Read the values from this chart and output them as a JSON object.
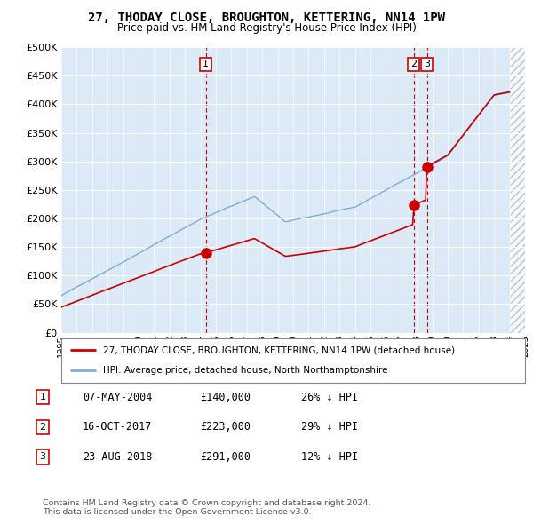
{
  "title": "27, THODAY CLOSE, BROUGHTON, KETTERING, NN14 1PW",
  "subtitle": "Price paid vs. HM Land Registry's House Price Index (HPI)",
  "ylim": [
    0,
    500000
  ],
  "yticks": [
    0,
    50000,
    100000,
    150000,
    200000,
    250000,
    300000,
    350000,
    400000,
    450000,
    500000
  ],
  "ytick_labels": [
    "£0",
    "£50K",
    "£100K",
    "£150K",
    "£200K",
    "£250K",
    "£300K",
    "£350K",
    "£400K",
    "£450K",
    "£500K"
  ],
  "xlim_start": 1995,
  "xlim_end": 2025,
  "hatch_start": 2024.0,
  "price_paid_color": "#cc0000",
  "hpi_color": "#7bafd4",
  "vertical_line_color": "#cc0000",
  "transactions": [
    {
      "date_num": 2004.35,
      "price": 140000,
      "label": "1"
    },
    {
      "date_num": 2017.79,
      "price": 223000,
      "label": "2"
    },
    {
      "date_num": 2018.65,
      "price": 291000,
      "label": "3"
    }
  ],
  "legend_label_red": "27, THODAY CLOSE, BROUGHTON, KETTERING, NN14 1PW (detached house)",
  "legend_label_blue": "HPI: Average price, detached house, North Northamptonshire",
  "table_rows": [
    {
      "num": "1",
      "date": "07-MAY-2004",
      "price": "£140,000",
      "note": "26% ↓ HPI"
    },
    {
      "num": "2",
      "date": "16-OCT-2017",
      "price": "£223,000",
      "note": "29% ↓ HPI"
    },
    {
      "num": "3",
      "date": "23-AUG-2018",
      "price": "£291,000",
      "note": "12% ↓ HPI"
    }
  ],
  "footer": "Contains HM Land Registry data © Crown copyright and database right 2024.\nThis data is licensed under the Open Government Licence v3.0.",
  "background_color": "#ffffff",
  "plot_bg_color": "#dce9f7"
}
